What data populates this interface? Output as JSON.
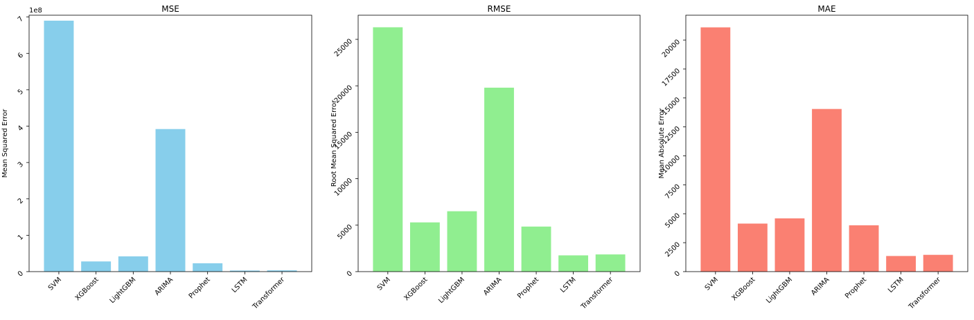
{
  "chart_data": [
    {
      "type": "bar",
      "title": "MSE",
      "xlabel": "",
      "ylabel": "Mean Squared Error",
      "offset_label": "1e8",
      "categories": [
        "SVM",
        "XGBoost",
        "LightGBM",
        "ARIMA",
        "Prophet",
        "LSTM",
        "Transformer"
      ],
      "values": [
        6.9,
        0.28,
        0.42,
        3.92,
        0.23,
        0.03,
        0.035
      ],
      "ylim": [
        0,
        7.05
      ],
      "yticks": [
        0,
        1,
        2,
        3,
        4,
        5,
        6,
        7
      ],
      "ytick_labels": [
        "0",
        "1",
        "2",
        "3",
        "4",
        "5",
        "6",
        "7"
      ],
      "color": "#87ceeb",
      "grid": false
    },
    {
      "type": "bar",
      "title": "RMSE",
      "xlabel": "",
      "ylabel": "Root Mean Squared Error",
      "categories": [
        "SVM",
        "XGBoost",
        "LightGBM",
        "ARIMA",
        "Prophet",
        "LSTM",
        "Transformer"
      ],
      "values": [
        26300,
        5300,
        6500,
        19800,
        4850,
        1750,
        1850
      ],
      "ylim": [
        0,
        27600
      ],
      "yticks": [
        0,
        5000,
        10000,
        15000,
        20000,
        25000
      ],
      "ytick_labels": [
        "0",
        "5000",
        "10000",
        "15000",
        "20000",
        "25000"
      ],
      "color": "#90ee90",
      "grid": false
    },
    {
      "type": "bar",
      "title": "MAE",
      "xlabel": "",
      "ylabel": "Mean Absolute Error",
      "categories": [
        "SVM",
        "XGBoost",
        "LightGBM",
        "ARIMA",
        "Prophet",
        "LSTM",
        "Transformer"
      ],
      "values": [
        21100,
        4150,
        4600,
        14050,
        4000,
        1350,
        1450
      ],
      "ylim": [
        0,
        22150
      ],
      "yticks": [
        0,
        2500,
        5000,
        7500,
        10000,
        12500,
        15000,
        17500,
        20000
      ],
      "ytick_labels": [
        "0",
        "2500",
        "5000",
        "7500",
        "10000",
        "12500",
        "15000",
        "17500",
        "20000"
      ],
      "color": "#fa8072",
      "grid": false
    }
  ]
}
